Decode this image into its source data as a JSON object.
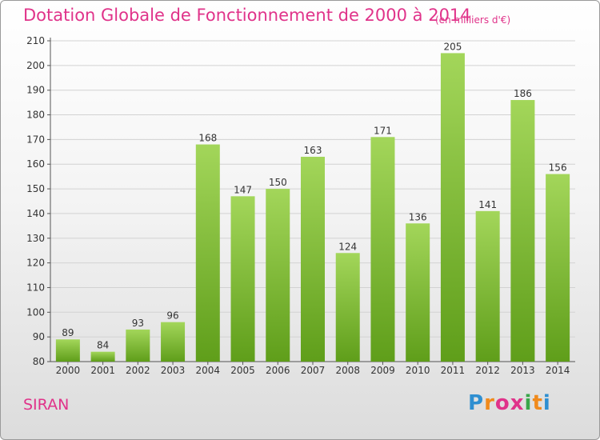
{
  "title": "Dotation Globale de Fonctionnement de 2000 à 2014",
  "unit": "(en milliers d'€)",
  "commune": "SIRAN",
  "logo": {
    "letters": [
      "P",
      "r",
      "o",
      "x",
      "i",
      "t",
      "i"
    ],
    "colors": [
      "#2f8fd1",
      "#f08a1c",
      "#e0338a",
      "#e0338a",
      "#3aa64a",
      "#f08a1c",
      "#2f8fd1"
    ]
  },
  "colors": {
    "bar_light": "#a3d65a",
    "bar_dark": "#5f9e1a",
    "title": "#e0338a"
  },
  "chart_data": {
    "type": "bar",
    "categories": [
      "2000",
      "2001",
      "2002",
      "2003",
      "2004",
      "2005",
      "2006",
      "2007",
      "2008",
      "2009",
      "2010",
      "2011",
      "2012",
      "2013",
      "2014"
    ],
    "values": [
      89,
      84,
      93,
      96,
      168,
      147,
      150,
      163,
      124,
      171,
      136,
      205,
      141,
      186,
      156
    ],
    "ylim": [
      80,
      210
    ],
    "yticks": [
      80,
      90,
      100,
      110,
      120,
      130,
      140,
      150,
      160,
      170,
      180,
      190,
      200,
      210
    ],
    "grid": true
  }
}
